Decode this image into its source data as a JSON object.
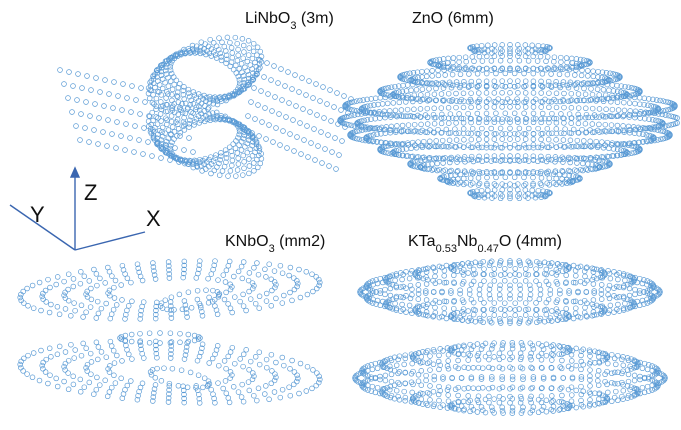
{
  "panels": [
    {
      "title": [
        "LiNbO",
        "3",
        " (3m)"
      ]
    },
    {
      "title": [
        "ZnO (6mm)"
      ]
    },
    {
      "title": [
        "KNbO",
        "3",
        " (mm2)"
      ]
    },
    {
      "title": [
        "KTa",
        "0.53",
        "Nb",
        "0.47",
        "O (4mm)"
      ]
    }
  ],
  "axes": {
    "x": "X",
    "y": "Y",
    "z": "Z"
  }
}
